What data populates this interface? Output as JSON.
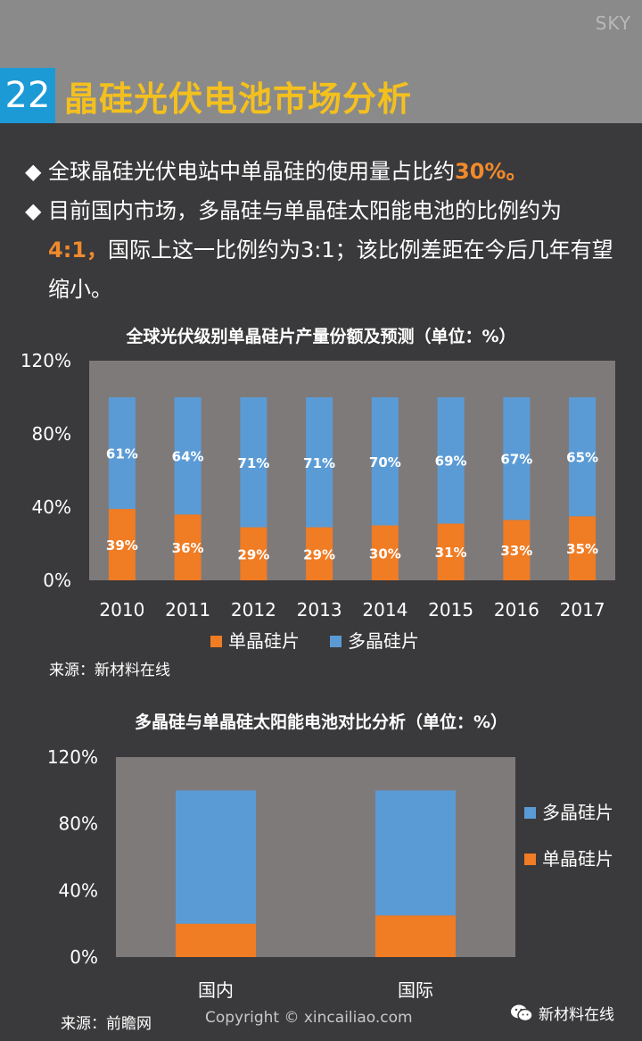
{
  "header": {
    "corner_text": "SKY",
    "number": "22",
    "title": "晶硅光伏电池市场分析"
  },
  "bullets": [
    {
      "text_before": "全球晶硅光伏电站中单晶硅的使用量占比约",
      "highlight": "30%。",
      "text_after": ""
    },
    {
      "text_before": "目前国内市场，多晶硅与单晶硅太阳能电池的比例约为",
      "highlight": "4:1，",
      "text_after": "国际上这一比例约为3:1；该比例差距在今后几年有望缩小。"
    }
  ],
  "chart_data": [
    {
      "type": "bar",
      "stacked": true,
      "title": "全球光伏级别单晶硅片产量份额及预测（单位：%）",
      "categories": [
        "2010",
        "2011",
        "2012",
        "2013",
        "2014",
        "2015",
        "2016",
        "2017"
      ],
      "series": [
        {
          "name": "单晶硅片",
          "values": [
            39,
            36,
            29,
            29,
            30,
            31,
            33,
            35
          ],
          "labels": [
            "39%",
            "36%",
            "29%",
            "29%",
            "30%",
            "31%",
            "33%",
            "35%"
          ],
          "color": "#f07c24"
        },
        {
          "name": "多晶硅片",
          "values": [
            61,
            64,
            71,
            71,
            70,
            69,
            67,
            65
          ],
          "labels": [
            "61%",
            "64%",
            "71%",
            "71%",
            "70%",
            "69%",
            "67%",
            "65%"
          ],
          "color": "#5b9bd5"
        }
      ],
      "yticks": [
        "0%",
        "40%",
        "80%",
        "120%"
      ],
      "ylim": [
        0,
        120
      ],
      "legend": "bottom",
      "source": "来源：新材料在线",
      "plot_bg": "#7e7a7a"
    },
    {
      "type": "bar",
      "stacked": true,
      "title": "多晶硅与单晶硅太阳能电池对比分析（单位：%）",
      "categories": [
        "国内",
        "国际"
      ],
      "series": [
        {
          "name": "单晶硅片",
          "values": [
            20,
            25
          ],
          "color": "#f07c24"
        },
        {
          "name": "多晶硅片",
          "values": [
            80,
            75
          ],
          "color": "#5b9bd5"
        }
      ],
      "yticks": [
        "0%",
        "40%",
        "80%",
        "120%"
      ],
      "ylim": [
        0,
        120
      ],
      "legend": "right",
      "legend_order": [
        "多晶硅片",
        "单晶硅片"
      ],
      "source": "来源：前瞻网",
      "plot_bg": "#7e7a7a"
    }
  ],
  "footer": {
    "copyright": "Copyright © xincailiao.com",
    "wechat_label": "新材料在线"
  }
}
